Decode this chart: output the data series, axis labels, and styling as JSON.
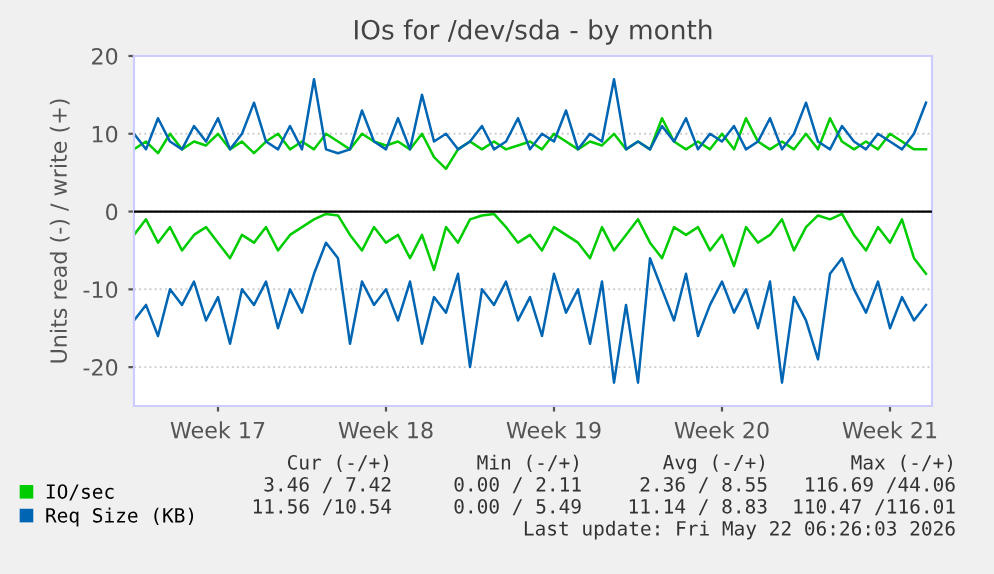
{
  "chart_data": {
    "type": "line",
    "title": "IOs for /dev/sda - by month",
    "ylabel": "Units read (-) / write (+)",
    "categories": [
      null,
      null,
      null,
      null,
      null,
      null,
      null,
      "Week 17",
      null,
      null,
      null,
      null,
      null,
      null,
      null,
      null,
      null,
      null,
      null,
      null,
      null,
      "Week 18",
      null,
      null,
      null,
      null,
      null,
      null,
      null,
      null,
      null,
      null,
      null,
      null,
      null,
      "Week 19",
      null,
      null,
      null,
      null,
      null,
      null,
      null,
      null,
      null,
      null,
      null,
      null,
      null,
      "Week 20",
      null,
      null,
      null,
      null,
      null,
      null,
      null,
      null,
      null,
      null,
      null,
      null,
      null,
      "Week 21",
      null,
      null,
      null
    ],
    "series": [
      {
        "name": "IO/sec",
        "color": "#00cc00",
        "values": [
          -3,
          -1,
          -4,
          -2,
          -5,
          -3,
          -2,
          -4,
          -6,
          -3,
          -4,
          -2,
          -5,
          -3,
          -2,
          -1,
          -0.3,
          -0.5,
          -3,
          -5,
          -2,
          -4,
          -3,
          -6,
          -3,
          -7.5,
          -2,
          -4,
          -1,
          -0.5,
          -0.3,
          -2,
          -4,
          -3,
          -5,
          -2,
          -3,
          -4,
          -6,
          -2,
          -5,
          -3,
          -1,
          -4,
          -6,
          -2,
          -3,
          -2,
          -5,
          -3,
          -7,
          -2,
          -4,
          -3,
          -1,
          -5,
          -2,
          -0.5,
          -1,
          -0.3,
          -3,
          -5,
          -2,
          -4,
          -1,
          -6,
          -8
        ]
      },
      {
        "color": "#00cc00",
        "values": [
          8,
          9,
          7.5,
          10,
          8,
          9,
          8.5,
          10,
          8,
          9,
          7.5,
          9,
          10,
          8,
          9,
          8,
          10,
          9,
          8,
          10,
          9,
          8.5,
          9,
          8,
          10,
          7,
          5.5,
          8,
          9,
          8,
          9,
          8,
          8.5,
          9,
          8,
          10,
          9,
          8,
          9,
          8.5,
          10,
          8,
          9,
          8,
          12,
          9,
          8,
          9,
          8,
          10,
          8,
          12,
          9,
          8,
          9,
          8,
          10,
          8,
          12,
          9,
          8,
          9,
          8,
          10,
          9,
          8,
          8
        ]
      },
      {
        "name": "Req Size (KB)",
        "color": "#0066b3",
        "values": [
          -14,
          -12,
          -16,
          -10,
          -12,
          -9,
          -14,
          -11,
          -17,
          -10,
          -12,
          -9,
          -15,
          -10,
          -13,
          -8,
          -4,
          -6,
          -17,
          -9,
          -12,
          -10,
          -14,
          -9,
          -17,
          -11,
          -13,
          -8,
          -20,
          -10,
          -12,
          -9,
          -14,
          -11,
          -16,
          -8,
          -13,
          -10,
          -17,
          -9,
          -22,
          -12,
          -22,
          -6,
          -10,
          -14,
          -8,
          -16,
          -12,
          -9,
          -13,
          -10,
          -15,
          -9,
          -22,
          -11,
          -14,
          -19,
          -8,
          -6,
          -10,
          -13,
          -9,
          -15,
          -11,
          -14,
          -12
        ]
      },
      {
        "color": "#0066b3",
        "values": [
          10,
          8,
          12,
          9,
          8,
          11,
          9,
          12,
          8,
          10,
          14,
          9,
          8,
          11,
          8,
          17,
          8,
          7.5,
          8,
          13,
          9,
          8,
          12,
          8,
          15,
          9,
          10,
          8,
          9,
          11,
          8,
          9,
          12,
          8,
          10,
          9,
          13,
          8,
          10,
          9,
          17,
          8,
          9,
          8,
          11,
          9,
          12,
          8,
          10,
          9,
          11,
          8,
          9,
          12,
          8,
          10,
          14,
          9,
          8,
          11,
          9,
          8,
          10,
          9,
          8,
          10,
          14
        ]
      }
    ],
    "ylim": [
      -25,
      20
    ],
    "yticks": [
      -20,
      -10,
      0,
      10,
      20
    ],
    "ref_lines": [
      {
        "axis": "y",
        "value": 0,
        "color": "#000000",
        "line_style": "solid"
      }
    ],
    "grid": "y",
    "legend": "bottom left",
    "line_style": "solid",
    "annotations": [
      "Cur (-/+)",
      "Min (-/+)",
      "Avg (-/+)",
      "Max (-/+)",
      "3.46 / 7.42",
      "0.00 / 2.11",
      "2.36 / 8.55",
      "116.69 /44.06",
      "11.56 /10.54",
      "0.00 / 5.49",
      "11.14 / 8.83",
      "110.47 /116.01",
      "Last update: Fri May 22 06:26:03 2026"
    ]
  }
}
